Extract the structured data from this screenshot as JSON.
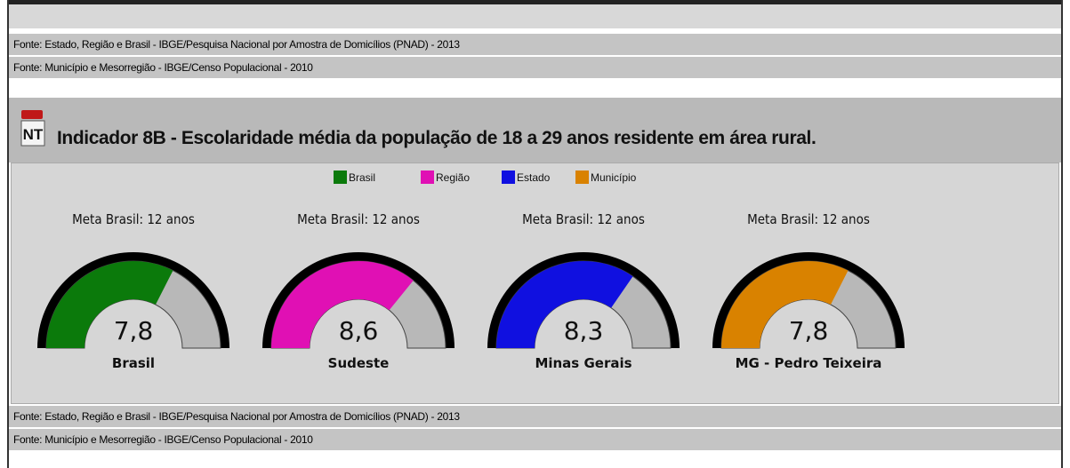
{
  "sources_top": [
    "Fonte: Estado, Região e Brasil - IBGE/Pesquisa Nacional por Amostra de Domicílios (PNAD) - 2013",
    "Fonte: Município e Mesorregião - IBGE/Censo Populacional - 2010"
  ],
  "indicator": {
    "icon": "NT",
    "title": "Indicador 8B - Escolaridade média da população de 18 a 29 anos residente em área rural."
  },
  "legend": [
    {
      "name": "Brasil",
      "color": "#0b7a0b"
    },
    {
      "name": "Região",
      "color": "#e010b4"
    },
    {
      "name": "Estado",
      "color": "#1010e0"
    },
    {
      "name": "Município",
      "color": "#d98200"
    }
  ],
  "chart_data": [
    {
      "type": "gauge",
      "title": "Meta Brasil: 12 anos",
      "categories": [
        "Brasil"
      ],
      "values": [
        7.8
      ],
      "value_labels": [
        "7,8"
      ],
      "ylim": [
        0,
        12
      ],
      "color": "#0b7a0b"
    },
    {
      "type": "gauge",
      "title": "Meta Brasil: 12 anos",
      "categories": [
        "Sudeste"
      ],
      "values": [
        8.6
      ],
      "value_labels": [
        "8,6"
      ],
      "ylim": [
        0,
        12
      ],
      "color": "#e010b4"
    },
    {
      "type": "gauge",
      "title": "Meta Brasil: 12 anos",
      "categories": [
        "Minas Gerais"
      ],
      "values": [
        8.3
      ],
      "value_labels": [
        "8,3"
      ],
      "ylim": [
        0,
        12
      ],
      "color": "#1010e0"
    },
    {
      "type": "gauge",
      "title": "Meta Brasil: 12 anos",
      "categories": [
        "MG - Pedro Teixeira"
      ],
      "values": [
        7.8
      ],
      "value_labels": [
        "7,8"
      ],
      "ylim": [
        0,
        12
      ],
      "color": "#d98200"
    }
  ],
  "sources_bottom": [
    "Fonte: Estado, Região e Brasil - IBGE/Pesquisa Nacional por Amostra de Domicílios (PNAD) - 2013",
    "Fonte: Município e Mesorregião - IBGE/Censo Populacional - 2010"
  ]
}
